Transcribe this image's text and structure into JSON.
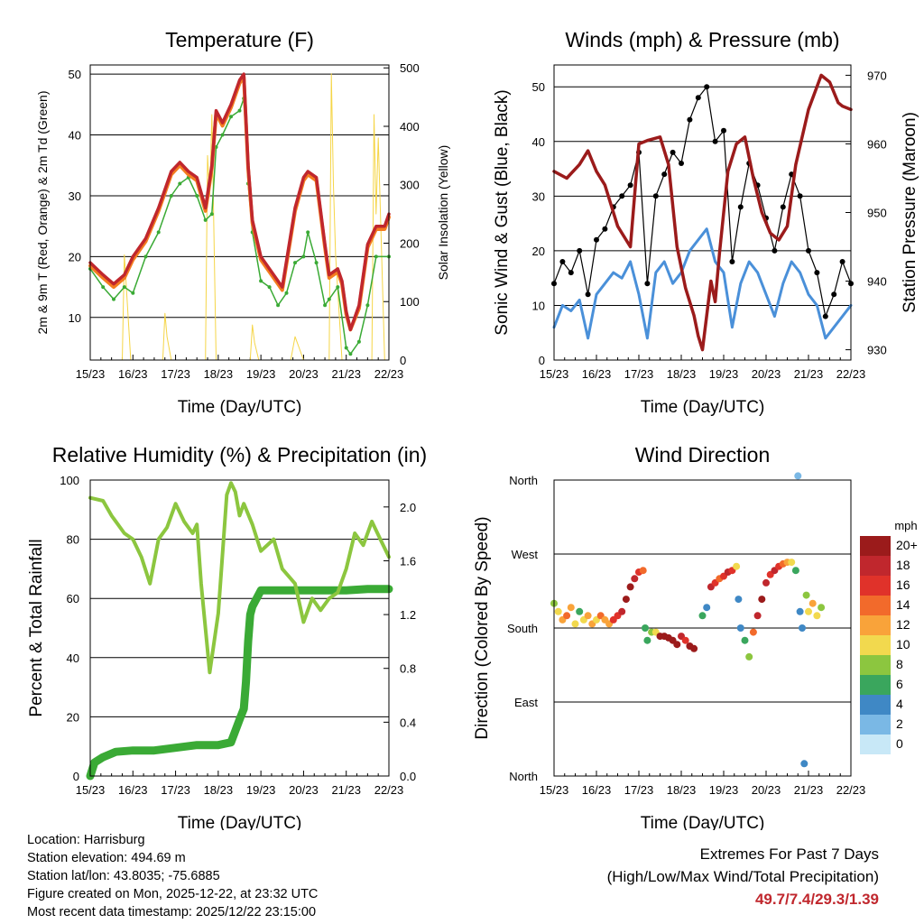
{
  "x_ticks": [
    "15/23",
    "16/23",
    "17/23",
    "18/23",
    "19/23",
    "20/23",
    "21/23",
    "22/23"
  ],
  "x_label": "Time (Day/UTC)",
  "colors": {
    "t2m": "#c0272d",
    "t9m": "#f47d20",
    "td": "#3aaa35",
    "solar": "#f5d547",
    "wind": "#4a90d9",
    "gust": "#000000",
    "pressure": "#9b1b1b",
    "rh": "#8cc63f",
    "precip": "#3aaa35",
    "extremes": "#c0272d"
  },
  "chart_data": [
    {
      "id": "temperature",
      "type": "line",
      "title": "Temperature (F)",
      "xlabel": "Time (Day/UTC)",
      "ylabel": "2m & 9m T (Red, Orange) & 2m Td (Green)",
      "y2label": "Solar Insolation (Yellow)",
      "xlim": [
        0,
        7
      ],
      "ylim": [
        3,
        51.5
      ],
      "y2lim": [
        0,
        505
      ],
      "yticks": [
        10,
        20,
        30,
        40,
        50
      ],
      "y2ticks": [
        0,
        100,
        200,
        300,
        400,
        500
      ],
      "series": [
        {
          "name": "2m T",
          "color": "#c0272d",
          "x": [
            0,
            0.3,
            0.55,
            0.8,
            1,
            1.3,
            1.6,
            1.9,
            2.1,
            2.3,
            2.5,
            2.7,
            2.85,
            2.95,
            3.1,
            3.3,
            3.5,
            3.6,
            3.7,
            3.8,
            4.0,
            4.3,
            4.5,
            4.8,
            5.0,
            5.1,
            5.3,
            5.5,
            5.6,
            5.8,
            5.9,
            6.0,
            6.1,
            6.3,
            6.5,
            6.7,
            6.9,
            7.0
          ],
          "y": [
            19,
            17,
            15.5,
            17,
            20,
            23,
            28,
            34,
            35.5,
            34,
            33,
            28,
            35,
            44,
            42,
            45,
            49,
            50,
            35,
            26,
            20,
            17,
            15,
            28,
            33,
            34,
            33,
            22,
            17,
            18,
            16,
            11,
            8,
            12,
            22,
            25,
            25,
            27
          ]
        },
        {
          "name": "9m T",
          "color": "#f47d20",
          "x": [
            0,
            0.3,
            0.55,
            0.8,
            1,
            1.3,
            1.6,
            1.9,
            2.1,
            2.3,
            2.5,
            2.7,
            2.85,
            2.95,
            3.1,
            3.3,
            3.5,
            3.6,
            3.7,
            3.8,
            4.0,
            4.3,
            4.5,
            4.8,
            5.0,
            5.1,
            5.3,
            5.5,
            5.6,
            5.8,
            5.9,
            6.0,
            6.1,
            6.3,
            6.5,
            6.7,
            6.9,
            7.0
          ],
          "y": [
            18.5,
            16.5,
            15,
            16.5,
            19.5,
            22.5,
            27.5,
            33.5,
            35,
            33.5,
            32.5,
            27.5,
            34.5,
            43.5,
            41.5,
            44.5,
            48.5,
            49.5,
            34.5,
            25.5,
            19.5,
            16.5,
            14.5,
            27.5,
            32.5,
            33.5,
            32.5,
            21.5,
            16.5,
            17.5,
            15.5,
            10.5,
            8,
            11.5,
            21.5,
            24.5,
            24.5,
            26.5
          ]
        },
        {
          "name": "2m Td",
          "color": "#3aaa35",
          "x": [
            0,
            0.3,
            0.55,
            0.8,
            1,
            1.3,
            1.6,
            1.9,
            2.1,
            2.3,
            2.5,
            2.7,
            2.85,
            2.95,
            3.1,
            3.3,
            3.5,
            3.6,
            3.7,
            3.8,
            4.0,
            4.2,
            4.4,
            4.6,
            4.8,
            5.0,
            5.1,
            5.3,
            5.5,
            5.6,
            5.8,
            6.0,
            6.1,
            6.3,
            6.5,
            6.7,
            7.0
          ],
          "y": [
            18,
            15,
            13,
            15,
            14,
            20,
            24,
            30,
            32,
            33,
            30,
            26,
            27,
            38,
            40,
            43,
            44,
            46,
            32,
            24,
            16,
            15,
            12,
            14,
            19,
            20,
            24,
            19,
            12,
            13,
            15,
            5,
            4,
            6,
            12,
            20,
            20
          ]
        },
        {
          "name": "Solar Insolation",
          "color": "#f5d547",
          "axis": "y2",
          "x": [
            0,
            0.75,
            0.8,
            0.85,
            0.95,
            1.7,
            1.75,
            1.8,
            1.9,
            2.7,
            2.75,
            2.8,
            2.85,
            2.95,
            3.3,
            3.5,
            3.6,
            3.75,
            3.8,
            3.85,
            3.95,
            4.7,
            4.8,
            4.9,
            5.0,
            5.6,
            5.65,
            5.7,
            5.75,
            5.9,
            6.6,
            6.65,
            6.7,
            6.75,
            6.9,
            7.0
          ],
          "y": [
            0,
            0,
            180,
            120,
            0,
            0,
            80,
            40,
            0,
            0,
            350,
            280,
            420,
            0,
            0,
            0,
            0,
            0,
            60,
            30,
            0,
            0,
            40,
            20,
            0,
            0,
            490,
            300,
            180,
            0,
            0,
            420,
            250,
            380,
            0,
            0
          ]
        }
      ]
    },
    {
      "id": "winds",
      "type": "line",
      "title": "Winds (mph) & Pressure (mb)",
      "xlabel": "Time (Day/UTC)",
      "ylabel": "Sonic Wind & Gust (Blue, Black)",
      "y2label": "Station Pressure (Maroon)",
      "xlim": [
        0,
        7
      ],
      "ylim": [
        0,
        54
      ],
      "y2lim": [
        928.5,
        971.5
      ],
      "yticks": [
        0,
        10,
        20,
        30,
        40,
        50
      ],
      "y2ticks": [
        930,
        940,
        950,
        960,
        970
      ],
      "series": [
        {
          "name": "Sonic Wind",
          "color": "#4a90d9",
          "x": [
            0,
            0.2,
            0.4,
            0.6,
            0.8,
            1.0,
            1.2,
            1.4,
            1.6,
            1.8,
            2.0,
            2.2,
            2.4,
            2.6,
            2.8,
            3.0,
            3.2,
            3.4,
            3.6,
            3.8,
            4.0,
            4.2,
            4.4,
            4.6,
            4.8,
            5.0,
            5.2,
            5.4,
            5.6,
            5.8,
            6.0,
            6.2,
            6.4,
            6.6,
            6.8,
            7.0
          ],
          "y": [
            6,
            10,
            9,
            11,
            4,
            12,
            14,
            16,
            15,
            18,
            12,
            4,
            16,
            18,
            14,
            16,
            20,
            22,
            24,
            18,
            16,
            6,
            14,
            18,
            16,
            12,
            8,
            14,
            18,
            16,
            12,
            10,
            4,
            6,
            8,
            10
          ]
        },
        {
          "name": "Gust",
          "color": "#000000",
          "x": [
            0,
            0.2,
            0.4,
            0.6,
            0.8,
            1.0,
            1.2,
            1.4,
            1.6,
            1.8,
            2.0,
            2.2,
            2.4,
            2.6,
            2.8,
            3.0,
            3.2,
            3.4,
            3.6,
            3.8,
            4.0,
            4.2,
            4.4,
            4.6,
            4.8,
            5.0,
            5.2,
            5.4,
            5.6,
            5.8,
            6.0,
            6.2,
            6.4,
            6.6,
            6.8,
            7.0
          ],
          "y": [
            14,
            18,
            16,
            20,
            12,
            22,
            24,
            28,
            30,
            32,
            38,
            14,
            30,
            34,
            38,
            36,
            44,
            48,
            50,
            40,
            42,
            18,
            28,
            36,
            32,
            26,
            20,
            28,
            34,
            30,
            20,
            16,
            8,
            12,
            18,
            14
          ]
        },
        {
          "name": "Station Pressure",
          "color": "#9b1b1b",
          "axis": "y2",
          "x": [
            0,
            0.3,
            0.6,
            0.8,
            1.0,
            1.2,
            1.5,
            1.8,
            2.0,
            2.2,
            2.5,
            2.7,
            2.9,
            3.1,
            3.3,
            3.4,
            3.5,
            3.6,
            3.7,
            3.8,
            3.9,
            4.1,
            4.3,
            4.5,
            4.7,
            4.9,
            5.1,
            5.3,
            5.5,
            5.7,
            6.0,
            6.3,
            6.5,
            6.7,
            6.8,
            7.0
          ],
          "y": [
            956,
            955,
            957,
            959,
            956,
            954,
            948,
            945,
            960,
            960.5,
            961,
            957,
            945,
            939,
            935,
            932,
            930,
            935,
            940,
            937,
            944,
            956,
            960,
            961,
            955,
            950,
            947,
            946,
            948,
            957,
            965,
            970,
            969,
            966,
            965.5,
            965
          ]
        }
      ]
    },
    {
      "id": "humidity",
      "type": "line",
      "title": "Relative Humidity (%) & Precipitation (in)",
      "xlabel": "Time (Day/UTC)",
      "ylabel": "Percent & Total Rainfall",
      "xlim": [
        0,
        7
      ],
      "ylim": [
        0,
        100
      ],
      "y2lim": [
        0,
        2.2
      ],
      "yticks": [
        0,
        20,
        40,
        60,
        80,
        100
      ],
      "y2ticks": [
        "0.0",
        "0.4",
        "0.8",
        "1.2",
        "1.6",
        "2.0"
      ],
      "series": [
        {
          "name": "Relative Humidity",
          "color": "#8cc63f",
          "x": [
            0,
            0.3,
            0.5,
            0.8,
            1.0,
            1.2,
            1.4,
            1.6,
            1.8,
            2.0,
            2.2,
            2.4,
            2.5,
            2.6,
            2.8,
            3.0,
            3.2,
            3.3,
            3.4,
            3.5,
            3.6,
            3.8,
            4.0,
            4.3,
            4.5,
            4.8,
            5.0,
            5.2,
            5.4,
            5.6,
            5.8,
            6.0,
            6.2,
            6.4,
            6.6,
            6.8,
            7.0
          ],
          "y": [
            94,
            93,
            88,
            82,
            80,
            74,
            65,
            80,
            84,
            92,
            86,
            82,
            85,
            65,
            35,
            55,
            95,
            99,
            96,
            88,
            92,
            85,
            76,
            80,
            70,
            65,
            52,
            60,
            56,
            60,
            62,
            70,
            82,
            78,
            86,
            80,
            74
          ]
        },
        {
          "name": "Total Precipitation",
          "color": "#3aaa35",
          "axis": "y2",
          "x": [
            0,
            0.1,
            0.3,
            0.6,
            1.0,
            1.5,
            2.0,
            2.5,
            3.0,
            3.3,
            3.5,
            3.6,
            3.65,
            3.7,
            3.75,
            3.8,
            4.0,
            4.5,
            5.0,
            5.5,
            6.0,
            6.5,
            7.0
          ],
          "y": [
            0.0,
            0.1,
            0.14,
            0.18,
            0.19,
            0.19,
            0.21,
            0.23,
            0.23,
            0.25,
            0.42,
            0.5,
            0.7,
            1.0,
            1.2,
            1.26,
            1.38,
            1.38,
            1.38,
            1.38,
            1.38,
            1.39,
            1.39
          ]
        }
      ]
    },
    {
      "id": "direction",
      "type": "scatter",
      "title": "Wind Direction",
      "xlabel": "Time (Day/UTC)",
      "ylabel": "Direction (Colored By Speed)",
      "xlim": [
        0,
        7
      ],
      "ylim": [
        0,
        360
      ],
      "ytick_labels": [
        "North",
        "East",
        "South",
        "West",
        "North"
      ],
      "legend": {
        "title": "mph",
        "labels": [
          "20+",
          "18",
          "16",
          "14",
          "12",
          "10",
          "8",
          "6",
          "4",
          "2",
          "0"
        ],
        "colors": [
          "#9b1b1b",
          "#c0272d",
          "#e0322a",
          "#f26a2b",
          "#f9a33a",
          "#f2d94e",
          "#8cc63f",
          "#3aa65d",
          "#3f88c5",
          "#7ab8e5",
          "#c8e8f7"
        ]
      },
      "points": [
        [
          0.0,
          210,
          8
        ],
        [
          0.1,
          200,
          10
        ],
        [
          0.2,
          190,
          12
        ],
        [
          0.3,
          195,
          14
        ],
        [
          0.4,
          205,
          12
        ],
        [
          0.5,
          185,
          10
        ],
        [
          0.6,
          200,
          6
        ],
        [
          0.7,
          190,
          9
        ],
        [
          0.8,
          195,
          11
        ],
        [
          0.9,
          185,
          12
        ],
        [
          1.0,
          190,
          10
        ],
        [
          1.1,
          195,
          13
        ],
        [
          1.2,
          190,
          12
        ],
        [
          1.3,
          185,
          11
        ],
        [
          1.4,
          190,
          15
        ],
        [
          1.5,
          195,
          16
        ],
        [
          1.6,
          200,
          18
        ],
        [
          1.7,
          215,
          20
        ],
        [
          1.8,
          230,
          20
        ],
        [
          1.9,
          240,
          18
        ],
        [
          2.0,
          248,
          16
        ],
        [
          2.1,
          250,
          14
        ],
        [
          2.15,
          180,
          6
        ],
        [
          2.2,
          165,
          5
        ],
        [
          2.3,
          175,
          8
        ],
        [
          2.4,
          175,
          10
        ],
        [
          2.5,
          170,
          20
        ],
        [
          2.6,
          170,
          20
        ],
        [
          2.7,
          168,
          22
        ],
        [
          2.8,
          165,
          20
        ],
        [
          2.9,
          160,
          20
        ],
        [
          3.0,
          170,
          18
        ],
        [
          3.1,
          165,
          16
        ],
        [
          3.2,
          158,
          20
        ],
        [
          3.3,
          155,
          20
        ],
        [
          3.5,
          195,
          6
        ],
        [
          3.6,
          205,
          4
        ],
        [
          3.7,
          230,
          18
        ],
        [
          3.8,
          235,
          16
        ],
        [
          3.9,
          240,
          14
        ],
        [
          4.0,
          243,
          16
        ],
        [
          4.1,
          248,
          18
        ],
        [
          4.2,
          250,
          16
        ],
        [
          4.3,
          255,
          10
        ],
        [
          4.35,
          215,
          4
        ],
        [
          4.4,
          180,
          3
        ],
        [
          4.5,
          165,
          5
        ],
        [
          4.6,
          145,
          8
        ],
        [
          4.7,
          175,
          14
        ],
        [
          4.8,
          195,
          18
        ],
        [
          4.9,
          215,
          20
        ],
        [
          5.0,
          235,
          18
        ],
        [
          5.1,
          245,
          16
        ],
        [
          5.2,
          250,
          18
        ],
        [
          5.3,
          255,
          16
        ],
        [
          5.4,
          258,
          14
        ],
        [
          5.5,
          260,
          12
        ],
        [
          5.6,
          260,
          10
        ],
        [
          5.7,
          250,
          6
        ],
        [
          5.75,
          365,
          2
        ],
        [
          5.8,
          200,
          4
        ],
        [
          5.85,
          180,
          3
        ],
        [
          5.9,
          15,
          3
        ],
        [
          5.95,
          220,
          8
        ],
        [
          6.0,
          200,
          10
        ],
        [
          6.1,
          210,
          12
        ],
        [
          6.2,
          195,
          9
        ],
        [
          6.3,
          205,
          8
        ]
      ]
    }
  ],
  "meta": {
    "location": "Location: Harrisburg",
    "elevation": "Station elevation: 494.69 m",
    "latlon": "Station lat/lon: 43.8035; -75.6885",
    "created": "Figure created on Mon, 2025-12-22, at 23:32 UTC",
    "recent": "Most recent data timestamp: 2025/12/22 23:15:00"
  },
  "extremes": {
    "line1": "Extremes For Past 7 Days",
    "line2": "(High/Low/Max Wind/Total Precipitation)",
    "values": "49.7/7.4/29.3/1.39"
  }
}
